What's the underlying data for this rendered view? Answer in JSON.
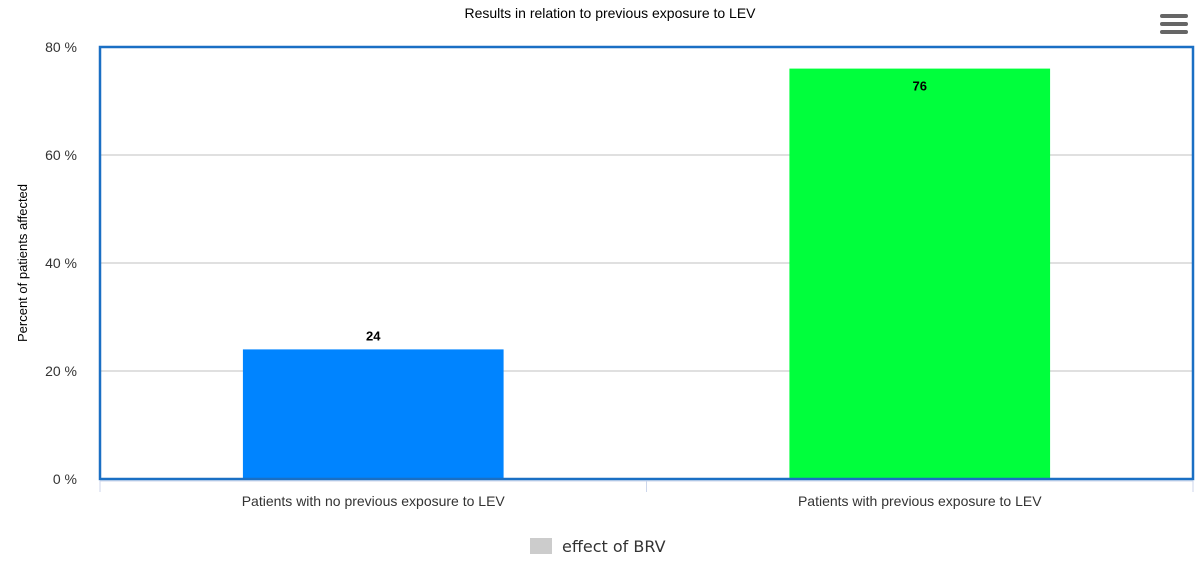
{
  "chart_data": {
    "type": "bar",
    "title": "Results in relation to previous exposure to LEV",
    "ylabel": "Percent of patients affected",
    "xlabel": "",
    "ylim": [
      0,
      80
    ],
    "yticks": [
      0,
      20,
      40,
      60,
      80
    ],
    "ytick_labels": [
      "0 %",
      "20 %",
      "40 %",
      "60 %",
      "80 %"
    ],
    "categories": [
      "Patients with no previous exposure to LEV",
      "Patients with previous exposure to LEV"
    ],
    "values": [
      24,
      76
    ],
    "data_labels": [
      "24",
      "76"
    ],
    "bar_colors": [
      "#0084ff",
      "#00ff3c"
    ],
    "grid": true,
    "legend": [
      {
        "label": "effect of BRV",
        "color": "#cccccc"
      }
    ],
    "legend_position": "bottom-center"
  },
  "menu": {
    "icon": "hamburger-menu-icon"
  },
  "colors": {
    "plot_border": "#1a6fc4",
    "grid": "#c0c0c0",
    "axis_text": "#333333"
  }
}
